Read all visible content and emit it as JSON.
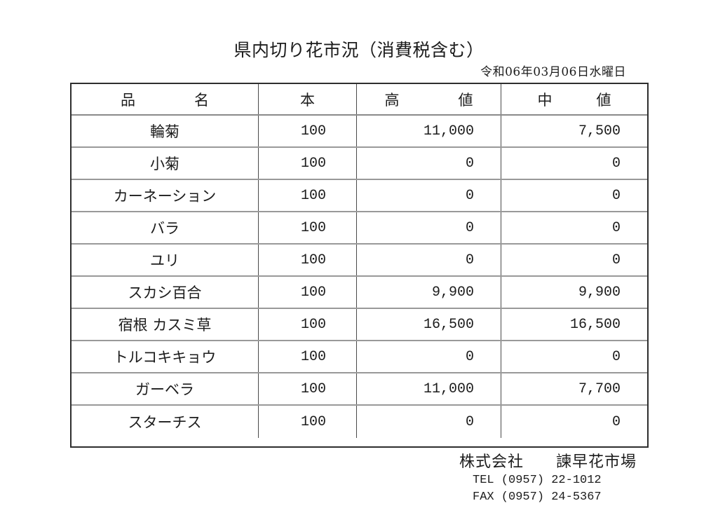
{
  "title": "県内切り花市況（消費税含む）",
  "date": "令和06年03月06日水曜日",
  "table": {
    "headers": {
      "name": "品　　　　名",
      "count": "本",
      "high": "高　　　　値",
      "mid": "中　　　値"
    },
    "rows": [
      {
        "name": "輪菊",
        "count": "100",
        "high": "11,000",
        "mid": "7,500"
      },
      {
        "name": "小菊",
        "count": "100",
        "high": "0",
        "mid": "0"
      },
      {
        "name": "カーネーション",
        "count": "100",
        "high": "0",
        "mid": "0"
      },
      {
        "name": "バラ",
        "count": "100",
        "high": "0",
        "mid": "0"
      },
      {
        "name": "ユリ",
        "count": "100",
        "high": "0",
        "mid": "0"
      },
      {
        "name": "スカシ百合",
        "count": "100",
        "high": "9,900",
        "mid": "9,900"
      },
      {
        "name": "宿根 カスミ草",
        "count": "100",
        "high": "16,500",
        "mid": "16,500"
      },
      {
        "name": "トルコキキョウ",
        "count": "100",
        "high": "0",
        "mid": "0"
      },
      {
        "name": "ガーベラ",
        "count": "100",
        "high": "11,000",
        "mid": "7,700"
      },
      {
        "name": "スターチス",
        "count": "100",
        "high": "0",
        "mid": "0"
      }
    ]
  },
  "footer": {
    "company": "株式会社　　諫早花市場",
    "tel": "TEL (0957) 22-1012",
    "fax": "FAX (0957) 24-5367"
  },
  "colors": {
    "ink": "#1c1c1c",
    "border_outer": "#2e2e2e",
    "border_row": "#999999",
    "border_column": "#4a4a4a"
  }
}
